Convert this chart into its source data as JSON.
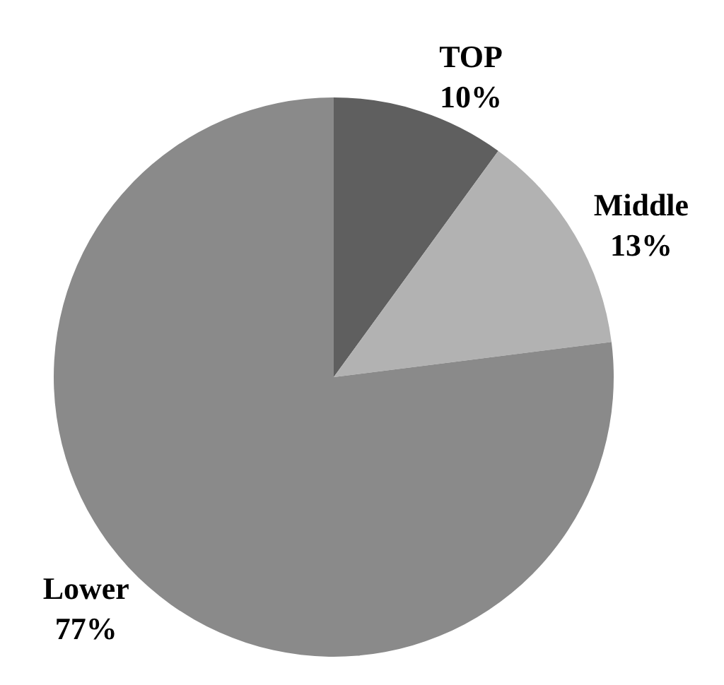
{
  "chart_data": {
    "type": "pie",
    "categories": [
      "TOP",
      "Middle",
      "Lower"
    ],
    "values": [
      10,
      13,
      77
    ],
    "value_labels": [
      "10%",
      "13%",
      "77%"
    ],
    "colors": [
      "#5f5f5f",
      "#b2b2b2",
      "#8a8a8a"
    ],
    "legend": false
  }
}
